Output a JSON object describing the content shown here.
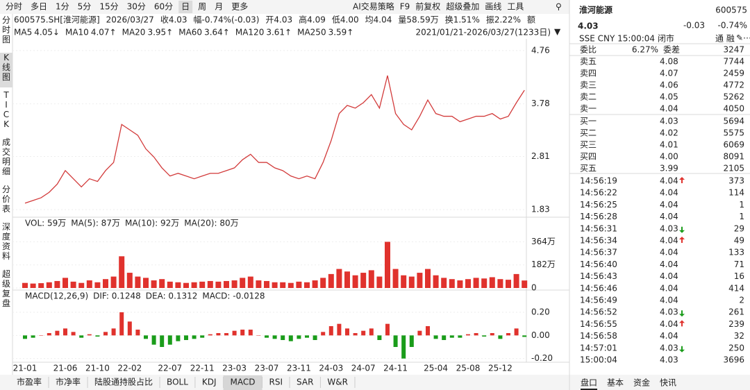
{
  "toolbar": {
    "tabs": [
      "分时",
      "多日",
      "1分",
      "5分",
      "15分",
      "30分",
      "60分",
      "日",
      "周",
      "月",
      "更多"
    ],
    "selected": 7,
    "tools": [
      "AI交易策略",
      "F9",
      "前复权",
      "超级叠加",
      "画线",
      "工具"
    ]
  },
  "info_row": [
    {
      "text": "600575.SH[淮河能源]",
      "color": "#222"
    },
    {
      "text": "2026/03/27",
      "color": "#222"
    },
    {
      "text": "收4.03",
      "color": "#1a9c1a"
    },
    {
      "text": "幅-0.74%(-0.03)",
      "color": "#1a9c1a"
    },
    {
      "text": "开4.03",
      "color": "#1a9c1a"
    },
    {
      "text": "高4.09",
      "color": "#e0322d"
    },
    {
      "text": "低4.00",
      "color": "#1a9c1a"
    },
    {
      "text": "均4.04",
      "color": "#1a9c1a"
    },
    {
      "text": "量58.59万",
      "color": "#222"
    },
    {
      "text": "换1.51%",
      "color": "#222"
    },
    {
      "text": "振2.22%",
      "color": "#222"
    },
    {
      "text": "额",
      "color": "#222"
    }
  ],
  "ma_row": [
    {
      "name": "MA5",
      "text": "4.05↓",
      "color": "#e0322d"
    },
    {
      "name": "MA10",
      "text": "4.07↑",
      "color": "#3366cc"
    },
    {
      "name": "MA20",
      "text": "3.95↑",
      "color": "#5555dd"
    },
    {
      "name": "MA60",
      "text": "3.64↑",
      "color": "#1fb8b8"
    },
    {
      "name": "MA120",
      "text": "3.61↑",
      "color": "#2e9e3e"
    },
    {
      "name": "MA250",
      "text": "3.59↑",
      "color": "#cc33cc"
    }
  ],
  "date_range": "2021/01/21-2026/03/27(1233日)",
  "side_tabs": [
    "分时图",
    "K线图",
    "TICK",
    "成交明细",
    "分价表",
    "深度资料",
    "超级复盘"
  ],
  "side_selected": 1,
  "chart_data": {
    "type": "line",
    "categories": [
      "21-01",
      null,
      null,
      null,
      null,
      "21-06",
      null,
      null,
      null,
      "21-10",
      null,
      null,
      null,
      "22-02",
      null,
      null,
      null,
      null,
      "22-07",
      null,
      null,
      null,
      "22-11",
      null,
      null,
      null,
      "23-03",
      null,
      null,
      null,
      "23-07",
      null,
      null,
      null,
      "23-11",
      null,
      null,
      null,
      "24-03",
      null,
      null,
      null,
      "24-07",
      null,
      null,
      null,
      "24-11",
      null,
      null,
      null,
      null,
      "25-04",
      null,
      null,
      null,
      "25-08",
      null,
      null,
      null,
      "25-12",
      null,
      null,
      null
    ],
    "series": [
      {
        "name": "收盘",
        "color": "#d23a3a",
        "values": [
          1.95,
          2.0,
          2.05,
          2.15,
          2.3,
          2.55,
          2.4,
          2.25,
          2.4,
          2.35,
          2.55,
          2.7,
          3.4,
          3.3,
          3.2,
          2.95,
          2.8,
          2.6,
          2.45,
          2.5,
          2.45,
          2.4,
          2.45,
          2.5,
          2.5,
          2.55,
          2.6,
          2.75,
          2.85,
          2.7,
          2.7,
          2.6,
          2.55,
          2.45,
          2.4,
          2.45,
          2.4,
          2.7,
          3.1,
          3.6,
          3.75,
          3.7,
          3.8,
          3.95,
          3.7,
          4.3,
          3.6,
          3.4,
          3.3,
          3.55,
          3.85,
          3.6,
          3.55,
          3.55,
          3.45,
          3.5,
          3.55,
          3.55,
          3.6,
          3.5,
          3.55,
          3.8,
          4.03
        ]
      }
    ],
    "ylim": [
      1.73,
      4.95
    ],
    "yticks": [
      4.76,
      3.78,
      2.81,
      1.83
    ],
    "volume": {
      "legend": [
        {
          "text": "VOL: 59万",
          "color": "#222"
        },
        {
          "text": "MA(5): 87万",
          "color": "#222"
        },
        {
          "text": "MA(10): 92万",
          "color": "#cc33cc"
        },
        {
          "text": "MA(20): 80万",
          "color": "#3366cc"
        }
      ],
      "color": "#e0322d",
      "values": [
        40,
        35,
        38,
        45,
        55,
        80,
        50,
        40,
        60,
        45,
        70,
        90,
        250,
        120,
        90,
        80,
        60,
        70,
        50,
        45,
        40,
        45,
        50,
        55,
        50,
        55,
        60,
        80,
        90,
        60,
        55,
        45,
        45,
        40,
        50,
        45,
        60,
        80,
        110,
        150,
        130,
        100,
        120,
        140,
        90,
        364,
        150,
        100,
        90,
        120,
        150,
        100,
        80,
        70,
        60,
        70,
        80,
        75,
        85,
        70,
        65,
        110,
        59
      ],
      "ylim": [
        0,
        465
      ],
      "yticks": [
        {
          "value": 364,
          "label": "364万"
        },
        {
          "value": 182,
          "label": "182万"
        },
        0
      ]
    },
    "macd": {
      "legend": [
        {
          "text": "MACD(12,26,9)",
          "color": "#222"
        },
        {
          "text": "DIF: 0.1248",
          "color": "#222"
        },
        {
          "text": "DEA: 0.1312",
          "color": "#cc33cc"
        },
        {
          "text": "MACD: -0.0128",
          "color": "#1a9c1a"
        }
      ],
      "up_color": "#e0322d",
      "down_color": "#1a9c1a",
      "values": [
        -0.03,
        -0.02,
        0.0,
        0.02,
        0.04,
        0.06,
        0.03,
        -0.02,
        0.01,
        -0.01,
        0.03,
        0.06,
        0.2,
        0.12,
        0.05,
        -0.03,
        -0.08,
        -0.1,
        -0.08,
        -0.05,
        -0.04,
        -0.03,
        -0.02,
        0.01,
        0.02,
        0.02,
        0.04,
        0.05,
        0.05,
        0.0,
        -0.02,
        -0.03,
        -0.04,
        -0.05,
        -0.03,
        -0.02,
        -0.04,
        0.03,
        0.08,
        0.1,
        0.06,
        0.02,
        0.04,
        0.06,
        -0.04,
        0.1,
        -0.1,
        -0.2,
        -0.1,
        0.04,
        0.08,
        -0.03,
        -0.04,
        -0.02,
        -0.02,
        0.01,
        0.02,
        -0.01,
        0.02,
        -0.03,
        0.02,
        0.06,
        -0.0128
      ],
      "ylim": [
        -0.22,
        0.26
      ],
      "yticks": [
        {
          "value": 0.2,
          "label": "0.20"
        },
        {
          "value": 0,
          "label": "0.00"
        },
        {
          "value": -0.2,
          "label": "-0.20"
        }
      ]
    }
  },
  "bottom_tabs": [
    "市盈率",
    "市净率",
    "陆股通持股占比",
    "BOLL",
    "KDJ",
    "MACD",
    "RSI",
    "SAR",
    "W&R"
  ],
  "bottom_selected": 5,
  "quote": {
    "name": "淮河能源",
    "code": "600575",
    "price": "4.03",
    "change": "-0.03",
    "change_pct": "-0.74%",
    "meta": "SSE CNY 15:00:04 闭市",
    "flags": "通 融",
    "ratio_label": "委比",
    "ratio": "6.27%",
    "diff_label": "委差",
    "diff": "3247"
  },
  "order_book": [
    {
      "label": "卖五",
      "price": "4.08",
      "volume": "7744",
      "color": "#e0322d"
    },
    {
      "label": "卖四",
      "price": "4.07",
      "volume": "2459",
      "color": "#e0322d"
    },
    {
      "label": "卖三",
      "price": "4.06",
      "volume": "4772",
      "color": "#222"
    },
    {
      "label": "卖二",
      "price": "4.05",
      "volume": "5262",
      "color": "#1a9c1a"
    },
    {
      "label": "卖一",
      "price": "4.04",
      "volume": "4050",
      "color": "#1a9c1a"
    },
    {
      "label": "买一",
      "price": "4.03",
      "volume": "5694",
      "color": "#1a9c1a"
    },
    {
      "label": "买二",
      "price": "4.02",
      "volume": "5575",
      "color": "#1a9c1a"
    },
    {
      "label": "买三",
      "price": "4.01",
      "volume": "6069",
      "color": "#1a9c1a"
    },
    {
      "label": "买四",
      "price": "4.00",
      "volume": "8091",
      "color": "#1a9c1a"
    },
    {
      "label": "买五",
      "price": "3.99",
      "volume": "2105",
      "color": "#1a9c1a"
    }
  ],
  "trades": [
    {
      "time": "14:56:19",
      "price": "4.04",
      "volume": "373",
      "color": "#e0322d",
      "arrow": "up"
    },
    {
      "time": "14:56:22",
      "price": "4.04",
      "volume": "114",
      "color": "#e0322d"
    },
    {
      "time": "14:56:25",
      "price": "4.04",
      "volume": "1",
      "color": "#e0322d"
    },
    {
      "time": "14:56:28",
      "price": "4.04",
      "volume": "1",
      "color": "#e0322d"
    },
    {
      "time": "14:56:31",
      "price": "4.03",
      "volume": "29",
      "color": "#1a9c1a",
      "arrow": "down"
    },
    {
      "time": "14:56:34",
      "price": "4.04",
      "volume": "49",
      "color": "#e0322d",
      "arrow": "up"
    },
    {
      "time": "14:56:37",
      "price": "4.04",
      "volume": "133",
      "color": "#e0322d"
    },
    {
      "time": "14:56:40",
      "price": "4.04",
      "volume": "71",
      "color": "#e0322d"
    },
    {
      "time": "14:56:43",
      "price": "4.04",
      "volume": "16",
      "color": "#e0322d"
    },
    {
      "time": "14:56:46",
      "price": "4.04",
      "volume": "414",
      "color": "#e0322d"
    },
    {
      "time": "14:56:49",
      "price": "4.04",
      "volume": "2",
      "color": "#e0322d"
    },
    {
      "time": "14:56:52",
      "price": "4.03",
      "volume": "261",
      "color": "#1a9c1a",
      "arrow": "down"
    },
    {
      "time": "14:56:55",
      "price": "4.04",
      "volume": "239",
      "color": "#e0322d",
      "arrow": "up"
    },
    {
      "time": "14:56:58",
      "price": "4.04",
      "volume": "32",
      "color": "#e0322d"
    },
    {
      "time": "14:57:01",
      "price": "4.03",
      "volume": "250",
      "color": "#1a9c1a",
      "arrow": "down"
    },
    {
      "time": "15:00:04",
      "price": "4.03",
      "volume": "3696",
      "color": "#e0322d"
    }
  ],
  "panel_tabs": [
    "盘口",
    "基本",
    "资金",
    "快讯"
  ],
  "panel_selected": 0
}
